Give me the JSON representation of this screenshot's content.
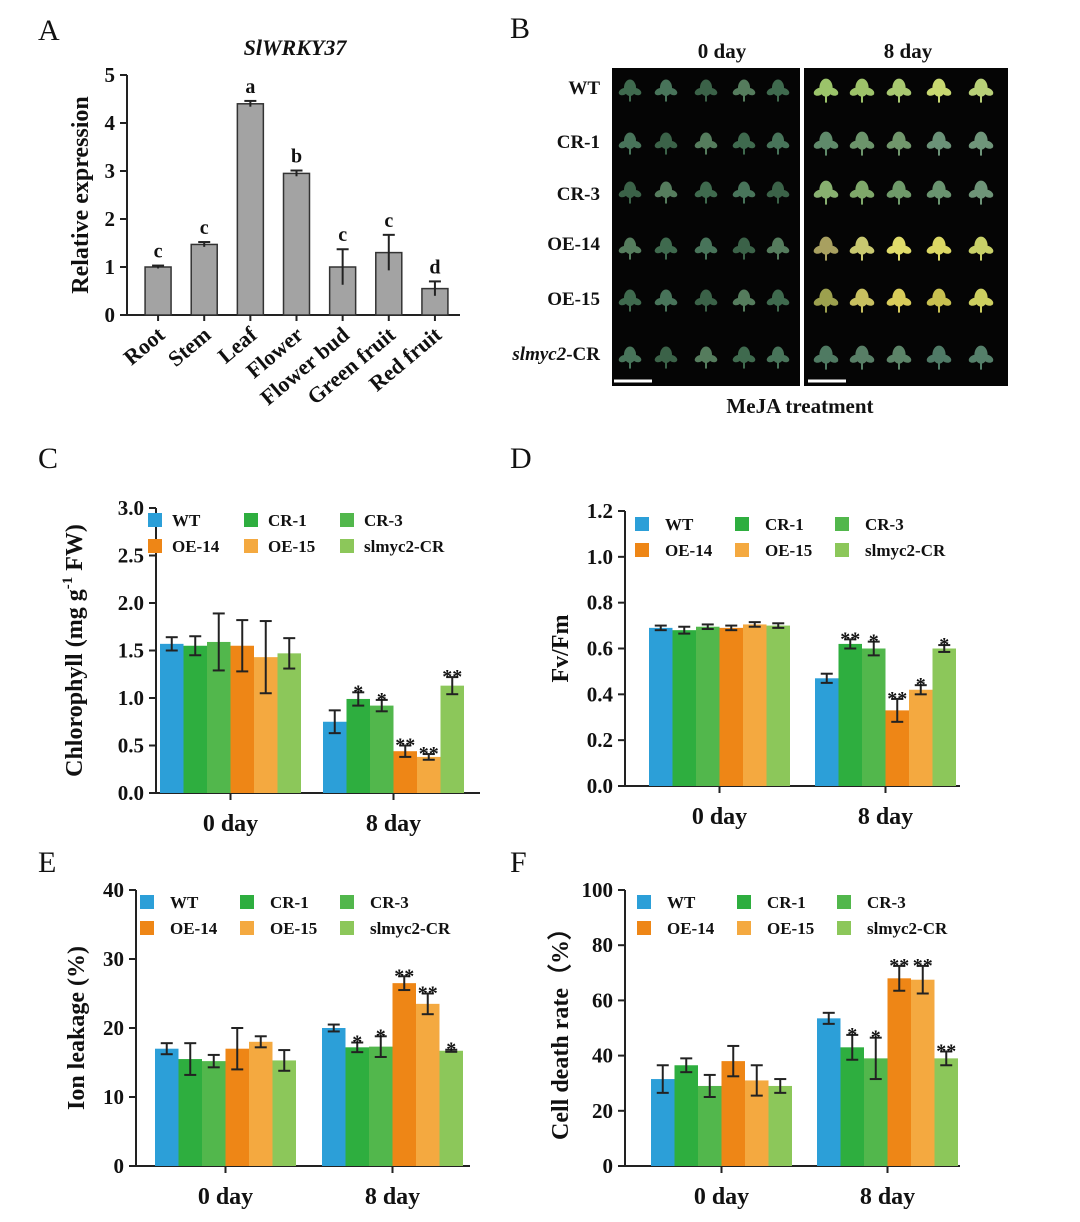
{
  "panel_letters": {
    "A": "A",
    "B": "B",
    "C": "C",
    "D": "D",
    "E": "E",
    "F": "F"
  },
  "colors": {
    "WT": "#2c9fd8",
    "CR-1": "#2eae3f",
    "CR-3": "#52b74c",
    "OE-14": "#ee8616",
    "OE-15": "#f4a940",
    "slmyc2-CR": "#8cc75a",
    "gray_bar": "#a3a3a3"
  },
  "panel_b": {
    "col_labels": [
      "0 day",
      "8 day"
    ],
    "row_labels": [
      {
        "text": "WT"
      },
      {
        "text": "CR-1"
      },
      {
        "text": "CR-3"
      },
      {
        "text": "OE-14"
      },
      {
        "text": "OE-15"
      },
      {
        "italic": "slmyc2",
        "rest": "-CR"
      }
    ],
    "caption": "MeJA treatment"
  },
  "chart_data": [
    {
      "panel": "A",
      "type": "bar",
      "title": "SlWRKY37",
      "ylabel": "Relative expression",
      "categories": [
        "Root",
        "Stem",
        "Leaf",
        "Flower",
        "Flower bud",
        "Green fruit",
        "Red fruit"
      ],
      "values": [
        1.0,
        1.47,
        4.4,
        2.95,
        1.0,
        1.3,
        0.55
      ],
      "errors": [
        0.03,
        0.05,
        0.06,
        0.06,
        0.37,
        0.37,
        0.15
      ],
      "annotations": [
        "c",
        "c",
        "a",
        "b",
        "c",
        "c",
        "d"
      ],
      "ylim": [
        0,
        5
      ],
      "yticks": [
        0,
        1,
        2,
        3,
        4,
        5
      ]
    },
    {
      "panel": "C",
      "type": "bar",
      "ylabel": "Chlorophyll (mg g^-1 FW)",
      "categories": [
        "0 day",
        "8 day"
      ],
      "legend": [
        "WT",
        "CR-1",
        "CR-3",
        "OE-14",
        "OE-15",
        "slmyc2-CR"
      ],
      "series": [
        {
          "name": "WT",
          "values": [
            1.57,
            0.75
          ],
          "errors": [
            0.07,
            0.12
          ],
          "stars": [
            "",
            ""
          ]
        },
        {
          "name": "CR-1",
          "values": [
            1.55,
            0.99
          ],
          "errors": [
            0.1,
            0.07
          ],
          "stars": [
            "",
            "*"
          ]
        },
        {
          "name": "CR-3",
          "values": [
            1.59,
            0.92
          ],
          "errors": [
            0.3,
            0.06
          ],
          "stars": [
            "",
            "*"
          ]
        },
        {
          "name": "OE-14",
          "values": [
            1.55,
            0.44
          ],
          "errors": [
            0.27,
            0.06
          ],
          "stars": [
            "",
            "**"
          ]
        },
        {
          "name": "OE-15",
          "values": [
            1.43,
            0.38
          ],
          "errors": [
            0.38,
            0.03
          ],
          "stars": [
            "",
            "**"
          ]
        },
        {
          "name": "slmyc2-CR",
          "values": [
            1.47,
            1.13
          ],
          "errors": [
            0.16,
            0.09
          ],
          "stars": [
            "",
            "**"
          ]
        }
      ],
      "ylim": [
        0,
        3
      ],
      "yticks": [
        "0.0",
        "0.5",
        "1.0",
        "1.5",
        "2.0",
        "2.5",
        "3.0"
      ]
    },
    {
      "panel": "D",
      "type": "bar",
      "ylabel": "Fv/Fm",
      "categories": [
        "0 day",
        "8 day"
      ],
      "legend": [
        "WT",
        "CR-1",
        "CR-3",
        "OE-14",
        "OE-15",
        "slmyc2-CR"
      ],
      "series": [
        {
          "name": "WT",
          "values": [
            0.69,
            0.47
          ],
          "errors": [
            0.01,
            0.02
          ],
          "stars": [
            "",
            ""
          ]
        },
        {
          "name": "CR-1",
          "values": [
            0.68,
            0.62
          ],
          "errors": [
            0.015,
            0.02
          ],
          "stars": [
            "",
            "**"
          ]
        },
        {
          "name": "CR-3",
          "values": [
            0.695,
            0.6
          ],
          "errors": [
            0.01,
            0.03
          ],
          "stars": [
            "",
            "*"
          ]
        },
        {
          "name": "OE-14",
          "values": [
            0.69,
            0.33
          ],
          "errors": [
            0.01,
            0.05
          ],
          "stars": [
            "",
            "**"
          ]
        },
        {
          "name": "OE-15",
          "values": [
            0.705,
            0.42
          ],
          "errors": [
            0.01,
            0.02
          ],
          "stars": [
            "",
            "*"
          ]
        },
        {
          "name": "slmyc2-CR",
          "values": [
            0.7,
            0.6
          ],
          "errors": [
            0.01,
            0.015
          ],
          "stars": [
            "",
            "*"
          ]
        }
      ],
      "ylim": [
        0,
        1.2
      ],
      "yticks": [
        "0.0",
        "0.2",
        "0.4",
        "0.6",
        "0.8",
        "1.0",
        "1.2"
      ]
    },
    {
      "panel": "E",
      "type": "bar",
      "ylabel": "Ion leakage (%)",
      "categories": [
        "0 day",
        "8 day"
      ],
      "legend": [
        "WT",
        "CR-1",
        "CR-3",
        "OE-14",
        "OE-15",
        "slmyc2-CR"
      ],
      "series": [
        {
          "name": "WT",
          "values": [
            17,
            20
          ],
          "errors": [
            0.8,
            0.5
          ],
          "stars": [
            "",
            ""
          ]
        },
        {
          "name": "CR-1",
          "values": [
            15.5,
            17.2
          ],
          "errors": [
            2.3,
            0.7
          ],
          "stars": [
            "",
            "*"
          ]
        },
        {
          "name": "CR-3",
          "values": [
            15.2,
            17.3
          ],
          "errors": [
            0.9,
            1.5
          ],
          "stars": [
            "",
            "*"
          ]
        },
        {
          "name": "OE-14",
          "values": [
            17,
            26.5
          ],
          "errors": [
            3.0,
            1.0
          ],
          "stars": [
            "",
            "**"
          ]
        },
        {
          "name": "OE-15",
          "values": [
            18,
            23.5
          ],
          "errors": [
            0.8,
            1.5
          ],
          "stars": [
            "",
            "**"
          ]
        },
        {
          "name": "slmyc2-CR",
          "values": [
            15.3,
            16.7
          ],
          "errors": [
            1.5,
            0.15
          ],
          "stars": [
            "",
            "*"
          ]
        }
      ],
      "ylim": [
        0,
        40
      ],
      "yticks": [
        "0",
        "10",
        "20",
        "30",
        "40"
      ]
    },
    {
      "panel": "F",
      "type": "bar",
      "ylabel": "Cell death rate（%）",
      "categories": [
        "0 day",
        "8 day"
      ],
      "legend": [
        "WT",
        "CR-1",
        "CR-3",
        "OE-14",
        "OE-15",
        "slmyc2-CR"
      ],
      "series": [
        {
          "name": "WT",
          "values": [
            31.5,
            53.5
          ],
          "errors": [
            5.0,
            2.0
          ],
          "stars": [
            "",
            ""
          ]
        },
        {
          "name": "CR-1",
          "values": [
            36.5,
            43
          ],
          "errors": [
            2.5,
            4.5
          ],
          "stars": [
            "",
            "*"
          ]
        },
        {
          "name": "CR-3",
          "values": [
            29,
            39
          ],
          "errors": [
            4.0,
            7.5
          ],
          "stars": [
            "",
            "*"
          ]
        },
        {
          "name": "OE-14",
          "values": [
            38,
            68
          ],
          "errors": [
            5.5,
            4.5
          ],
          "stars": [
            "",
            "**"
          ]
        },
        {
          "name": "OE-15",
          "values": [
            31,
            67.5
          ],
          "errors": [
            5.5,
            5.0
          ],
          "stars": [
            "",
            "**"
          ]
        },
        {
          "name": "slmyc2-CR",
          "values": [
            29,
            39
          ],
          "errors": [
            2.5,
            2.5
          ],
          "stars": [
            "",
            "**"
          ]
        }
      ],
      "ylim": [
        0,
        100
      ],
      "yticks": [
        "0",
        "20",
        "40",
        "60",
        "80",
        "100"
      ]
    }
  ]
}
